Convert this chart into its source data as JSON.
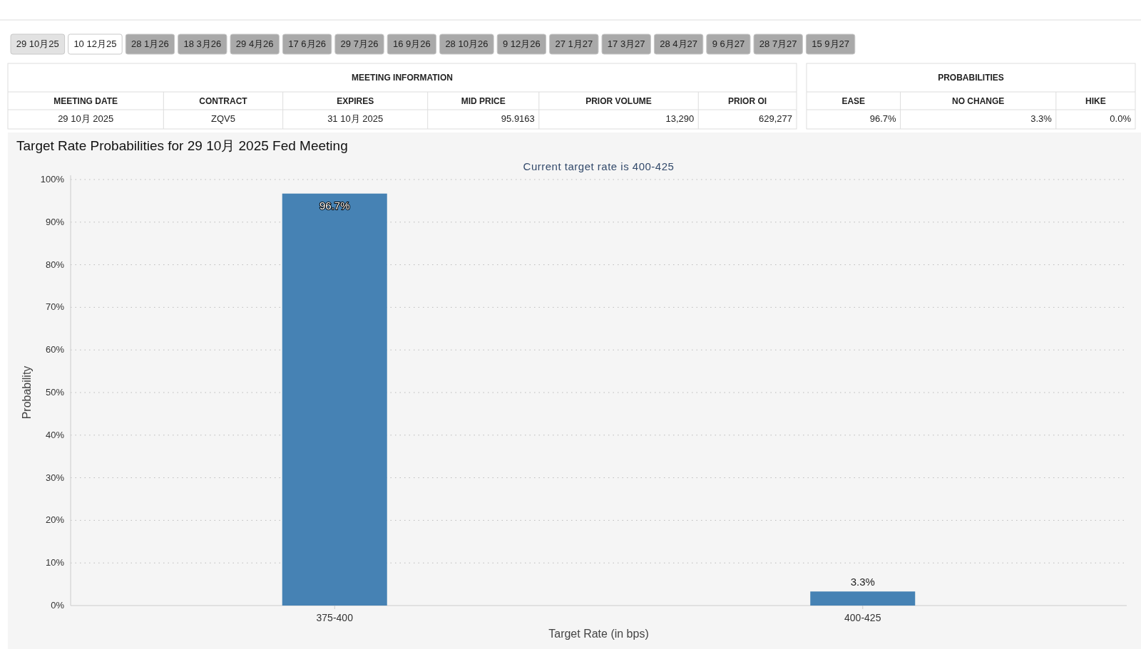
{
  "chart_data": [
    {
      "type": "other",
      "annotations": [
        "29 10月25",
        "10 12月25",
        "28 1月26",
        "18 3月26",
        "29 4月26",
        "17 6月26",
        "29 7月26",
        "16 9月26",
        "28 10月26",
        "9 12月26",
        "27 1月27",
        "17 3月27",
        "28 4月27",
        "9 6月27",
        "28 7月27",
        "15 9月27"
      ]
    },
    {
      "type": "other",
      "title": "MEETING INFORMATION",
      "annotations": [
        "MEETING DATE",
        "CONTRACT",
        "EXPIRES",
        "MID PRICE",
        "PRIOR VOLUME",
        "PRIOR OI",
        "29 10月 2025",
        "ZQV5",
        "31 10月 2025",
        "95.9163",
        "13,290",
        "629,277"
      ]
    },
    {
      "type": "other",
      "title": "PROBABILITIES",
      "annotations": [
        "EASE",
        "NO CHANGE",
        "HIKE",
        "96.7%",
        "3.3%",
        "0.0%"
      ]
    },
    {
      "type": "bar",
      "title": "Target Rate Probabilities for 29 10月 2025 Fed Meeting",
      "subtitle": "Current target rate is 400-425",
      "xlabel": "Target Rate (in bps)",
      "ylabel": "Probability",
      "categories": [
        "375-400",
        "400-425"
      ],
      "values": [
        96.7,
        3.3
      ],
      "value_labels": [
        "96.7%",
        "3.3%"
      ],
      "color": "#4682b4",
      "ylim": [
        0,
        100
      ],
      "yticks": [
        {
          "value": 0,
          "label": "0%"
        },
        {
          "value": 10,
          "label": "10%"
        },
        {
          "value": 20,
          "label": "20%"
        },
        {
          "value": 30,
          "label": "30%"
        },
        {
          "value": 40,
          "label": "40%"
        },
        {
          "value": 50,
          "label": "50%"
        },
        {
          "value": 60,
          "label": "60%"
        },
        {
          "value": 70,
          "label": "70%"
        },
        {
          "value": 80,
          "label": "80%"
        },
        {
          "value": 90,
          "label": "90%"
        },
        {
          "value": 100,
          "label": "100%"
        }
      ],
      "grid": "y"
    }
  ]
}
